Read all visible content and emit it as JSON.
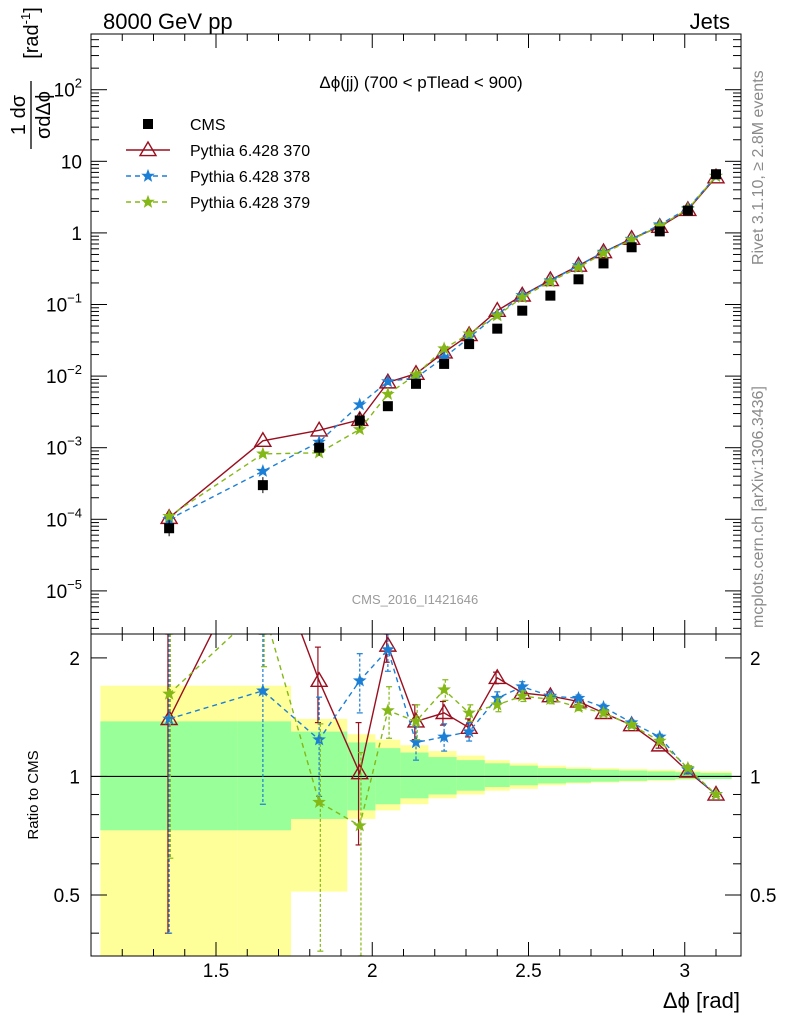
{
  "header": {
    "left": "8000 GeV pp",
    "right": "Jets"
  },
  "side_labels": {
    "rivet": "Rivet 3.1.10, ≥ 2.8M events",
    "mcplots": "mcplots.cern.ch [arXiv:1306.3436]"
  },
  "chart_data": {
    "type": "scatter",
    "title": "Δϕ(jj) (700 < pTlead <  900)",
    "watermark": "CMS_2016_I1421646",
    "xlabel": "Δϕ [rad]",
    "ylabel_top": "1  dσ / σ dΔϕ  [rad⁻¹]",
    "ylabel_top_parts": {
      "frac_num": "1 dσ",
      "frac_den": "σdΔϕ",
      "unit": "[rad",
      "unit_exp": "-1",
      "unit_close": "]"
    },
    "ylabel_bottom": "Ratio to CMS",
    "xlim": [
      1.1,
      3.18
    ],
    "ylim_top": [
      2.5e-06,
      600
    ],
    "ylim_top_log": true,
    "ylim_bottom": [
      0.35,
      2.3
    ],
    "ylim_bottom_log": true,
    "x_ticks": [
      "1.5",
      "2",
      "2.5",
      "3"
    ],
    "y_ticks_top": [
      {
        "base": "10",
        "exp": "−5",
        "value": 1e-05
      },
      {
        "base": "10",
        "exp": "−4",
        "value": 0.0001
      },
      {
        "base": "10",
        "exp": "−3",
        "value": 0.001
      },
      {
        "base": "10",
        "exp": "−2",
        "value": 0.01
      },
      {
        "base": "10",
        "exp": "−1",
        "value": 0.1
      },
      {
        "base": "1",
        "exp": "",
        "value": 1
      },
      {
        "base": "10",
        "exp": "",
        "value": 10
      },
      {
        "base": "10",
        "exp": "2",
        "value": 100
      }
    ],
    "y_ticks_bottom": [
      "0.5",
      "1",
      "2"
    ],
    "legend_position": "top-left",
    "legend": [
      {
        "name": "CMS",
        "color": "#000000",
        "style": "square"
      },
      {
        "name": "Pythia 6.428 370",
        "color": "#9a0f1f",
        "style": "solid-triangle"
      },
      {
        "name": "Pythia 6.428 378",
        "color": "#1c7fd6",
        "style": "dashed-star"
      },
      {
        "name": "Pythia 6.428 379",
        "color": "#84b816",
        "style": "dashed-star"
      }
    ],
    "x": [
      1.35,
      1.65,
      1.83,
      1.96,
      2.05,
      2.14,
      2.23,
      2.31,
      2.4,
      2.48,
      2.57,
      2.66,
      2.74,
      2.83,
      2.92,
      3.01,
      3.1
    ],
    "data": {
      "name": "CMS",
      "values": [
        7.5e-05,
        0.0003,
        0.001,
        0.0024,
        0.0038,
        0.0078,
        0.0148,
        0.028,
        0.046,
        0.082,
        0.133,
        0.225,
        0.375,
        0.63,
        1.05,
        2.05,
        6.6
      ],
      "band_edges": [
        1.13,
        1.57,
        1.74,
        1.92,
        2.01,
        2.09,
        2.18,
        2.27,
        2.36,
        2.44,
        2.53,
        2.62,
        2.7,
        2.79,
        2.88,
        2.97,
        3.05,
        3.15
      ],
      "band_stat_lo": [
        0.73,
        0.73,
        0.78,
        0.82,
        0.85,
        0.88,
        0.9,
        0.92,
        0.94,
        0.95,
        0.96,
        0.965,
        0.97,
        0.975,
        0.98,
        0.985,
        0.985
      ],
      "band_stat_hi": [
        1.38,
        1.38,
        1.3,
        1.22,
        1.18,
        1.15,
        1.12,
        1.1,
        1.08,
        1.065,
        1.05,
        1.045,
        1.04,
        1.035,
        1.03,
        1.025,
        1.02
      ],
      "band_tot_lo": [
        0.32,
        0.32,
        0.51,
        0.78,
        0.82,
        0.85,
        0.88,
        0.9,
        0.92,
        0.93,
        0.95,
        0.96,
        0.965,
        0.97,
        0.975,
        0.98,
        0.985
      ],
      "band_tot_hi": [
        1.7,
        1.7,
        1.4,
        1.28,
        1.24,
        1.2,
        1.16,
        1.13,
        1.1,
        1.08,
        1.065,
        1.055,
        1.05,
        1.045,
        1.04,
        1.035,
        1.03
      ]
    },
    "series": [
      {
        "name": "Pythia 6.428 370",
        "color": "#9a0f1f",
        "dashed": false,
        "marker": "triangle",
        "values": [
          0.000105,
          0.00125,
          0.00175,
          0.00245,
          0.0082,
          0.0108,
          0.0215,
          0.0375,
          0.082,
          0.134,
          0.22,
          0.35,
          0.54,
          0.83,
          1.22,
          2.1,
          6.0
        ],
        "ratio": [
          1.4,
          4.2,
          1.75,
          1.02,
          2.15,
          1.38,
          1.45,
          1.33,
          1.78,
          1.63,
          1.6,
          1.55,
          1.45,
          1.35,
          1.2,
          1.03,
          0.9
        ],
        "ratio_err": [
          1.0,
          0.5,
          0.38,
          0.35,
          0.2,
          0.14,
          0.1,
          0.07,
          0.06,
          0.05,
          0.04,
          0.03,
          0.025,
          0.02,
          0.02,
          0.015,
          0.01
        ]
      },
      {
        "name": "Pythia 6.428 378",
        "color": "#1c7fd6",
        "dashed": true,
        "marker": "star",
        "values": [
          0.0001,
          0.00047,
          0.0012,
          0.004,
          0.0084,
          0.0095,
          0.0182,
          0.0345,
          0.072,
          0.134,
          0.215,
          0.35,
          0.54,
          0.82,
          1.3,
          2.2,
          6.2
        ],
        "ratio": [
          1.4,
          1.65,
          1.24,
          1.75,
          2.1,
          1.22,
          1.26,
          1.3,
          1.58,
          1.69,
          1.6,
          1.58,
          1.5,
          1.37,
          1.26,
          1.04,
          0.9
        ],
        "ratio_err": [
          1.0,
          0.8,
          0.35,
          0.3,
          0.25,
          0.12,
          0.1,
          0.07,
          0.06,
          0.05,
          0.04,
          0.03,
          0.025,
          0.02,
          0.02,
          0.015,
          0.01
        ]
      },
      {
        "name": "Pythia 6.428 379",
        "color": "#84b816",
        "dashed": true,
        "marker": "star",
        "values": [
          0.00011,
          0.00082,
          0.00085,
          0.0018,
          0.0056,
          0.0105,
          0.0242,
          0.039,
          0.07,
          0.126,
          0.208,
          0.33,
          0.52,
          0.8,
          1.25,
          2.15,
          6.2
        ],
        "ratio": [
          1.62,
          2.7,
          0.86,
          0.75,
          1.47,
          1.38,
          1.66,
          1.45,
          1.52,
          1.6,
          1.57,
          1.5,
          1.45,
          1.35,
          1.23,
          1.05,
          0.9
        ],
        "ratio_err": [
          1.0,
          0.8,
          0.5,
          0.4,
          0.22,
          0.14,
          0.1,
          0.07,
          0.06,
          0.05,
          0.04,
          0.03,
          0.025,
          0.02,
          0.02,
          0.015,
          0.01
        ]
      }
    ]
  }
}
